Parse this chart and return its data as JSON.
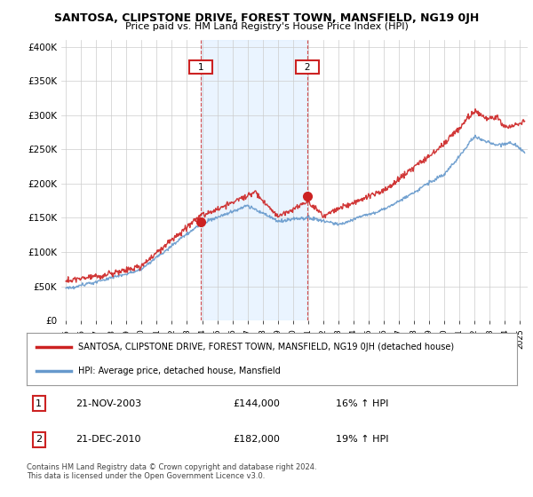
{
  "title": "SANTOSA, CLIPSTONE DRIVE, FOREST TOWN, MANSFIELD, NG19 0JH",
  "subtitle": "Price paid vs. HM Land Registry's House Price Index (HPI)",
  "ylabel_ticks": [
    "£0",
    "£50K",
    "£100K",
    "£150K",
    "£200K",
    "£250K",
    "£300K",
    "£350K",
    "£400K"
  ],
  "ytick_vals": [
    0,
    50000,
    100000,
    150000,
    200000,
    250000,
    300000,
    350000,
    400000
  ],
  "ylim": [
    0,
    410000
  ],
  "xlim_start": 1994.7,
  "xlim_end": 2025.5,
  "hpi_color": "#6699cc",
  "price_color": "#cc2222",
  "sale1_x": 2003.9,
  "sale1_y": 144000,
  "sale2_x": 2010.97,
  "sale2_y": 182000,
  "vline1_x": 2003.9,
  "vline2_x": 2010.97,
  "shade_xmin": 2003.9,
  "shade_xmax": 2010.97,
  "legend_line1": "SANTOSA, CLIPSTONE DRIVE, FOREST TOWN, MANSFIELD, NG19 0JH (detached house)",
  "legend_line2": "HPI: Average price, detached house, Mansfield",
  "annotation1_label": "1",
  "annotation1_date": "21-NOV-2003",
  "annotation1_price": "£144,000",
  "annotation1_hpi": "16% ↑ HPI",
  "annotation2_label": "2",
  "annotation2_date": "21-DEC-2010",
  "annotation2_price": "£182,000",
  "annotation2_hpi": "19% ↑ HPI",
  "footer": "Contains HM Land Registry data © Crown copyright and database right 2024.\nThis data is licensed under the Open Government Licence v3.0.",
  "background_color": "#ffffff",
  "plot_bg_color": "#ffffff",
  "grid_color": "#cccccc",
  "shade_color": "#ddeeff"
}
